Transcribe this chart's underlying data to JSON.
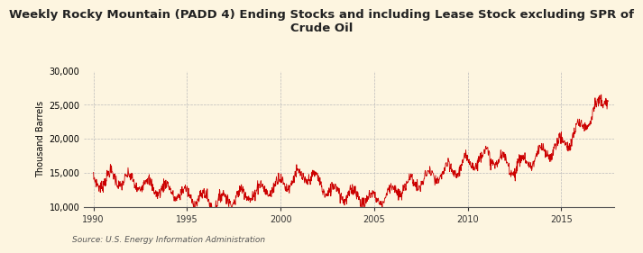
{
  "title": "Weekly Rocky Mountain (PADD 4) Ending Stocks and including Lease Stock excluding SPR of\nCrude Oil",
  "ylabel": "Thousand Barrels",
  "source": "Source: U.S. Energy Information Administration",
  "line_color": "#cc0000",
  "background_color": "#fdf5e0",
  "plot_bg_color": "#fdf5e0",
  "grid_color": "#bbbbbb",
  "ylim": [
    10000,
    30000
  ],
  "yticks": [
    10000,
    15000,
    20000,
    25000,
    30000
  ],
  "ytick_labels": [
    "10,000",
    "15,000",
    "20,000",
    "25,000",
    "30,000"
  ],
  "xlim_start": 1989.5,
  "xlim_end": 2017.8,
  "xticks": [
    1990,
    1995,
    2000,
    2005,
    2010,
    2015
  ]
}
